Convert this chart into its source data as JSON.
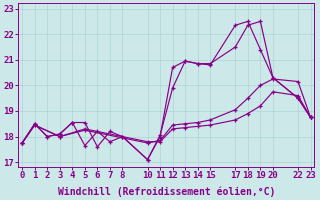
{
  "xlabel": "Windchill (Refroidissement éolien,°C)",
  "background_color": "#cce8e8",
  "grid_color": "#aad4d4",
  "line_color": "#880088",
  "xlim": [
    -0.3,
    23.3
  ],
  "ylim": [
    16.8,
    23.2
  ],
  "xticks": [
    0,
    1,
    2,
    3,
    4,
    5,
    6,
    7,
    8,
    10,
    11,
    12,
    13,
    14,
    15,
    17,
    18,
    19,
    20,
    22,
    23
  ],
  "yticks": [
    17,
    18,
    19,
    20,
    21,
    22,
    23
  ],
  "series": [
    {
      "x": [
        0,
        1,
        2,
        3,
        4,
        5,
        6,
        7,
        8,
        10,
        11,
        12,
        13,
        14,
        15,
        17,
        18,
        19,
        20,
        22,
        23
      ],
      "y": [
        17.75,
        18.5,
        18.0,
        18.1,
        18.55,
        17.65,
        18.2,
        17.8,
        18.0,
        17.1,
        18.0,
        20.7,
        20.95,
        20.85,
        20.85,
        21.5,
        22.35,
        22.5,
        20.3,
        19.5,
        18.75
      ]
    },
    {
      "x": [
        0,
        1,
        2,
        3,
        4,
        5,
        6,
        7,
        8,
        10,
        11,
        12,
        13,
        14,
        15,
        17,
        18,
        19,
        20,
        22,
        23
      ],
      "y": [
        17.75,
        18.5,
        18.0,
        18.1,
        18.55,
        18.55,
        17.6,
        18.2,
        18.0,
        17.1,
        18.05,
        19.9,
        20.95,
        20.85,
        20.8,
        22.35,
        22.5,
        21.4,
        20.3,
        19.5,
        18.75
      ]
    },
    {
      "x": [
        0,
        1,
        3,
        5,
        10,
        11,
        12,
        13,
        14,
        15,
        17,
        18,
        19,
        20,
        22,
        23
      ],
      "y": [
        17.75,
        18.45,
        18.0,
        18.25,
        17.75,
        17.85,
        18.45,
        18.5,
        18.55,
        18.65,
        19.05,
        19.5,
        20.0,
        20.25,
        20.15,
        18.75
      ]
    },
    {
      "x": [
        0,
        1,
        3,
        5,
        10,
        11,
        12,
        13,
        14,
        15,
        17,
        18,
        19,
        20,
        22,
        23
      ],
      "y": [
        17.75,
        18.45,
        18.0,
        18.3,
        17.8,
        17.8,
        18.3,
        18.35,
        18.4,
        18.45,
        18.65,
        18.9,
        19.2,
        19.75,
        19.6,
        18.75
      ]
    }
  ],
  "fontsize_xlabel": 7,
  "fontsize_tick": 6.5
}
